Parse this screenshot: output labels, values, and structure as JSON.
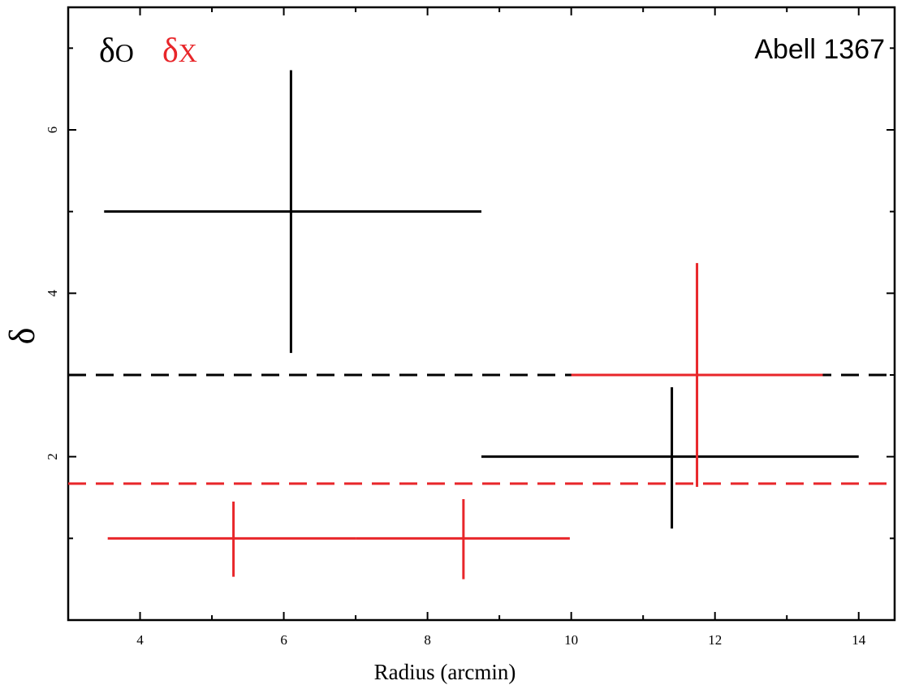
{
  "chart_data": {
    "type": "scatter",
    "xlabel": "Radius (arcmin)",
    "ylabel": "δ",
    "annotation": "Abell 1367",
    "xlim": [
      3,
      14.5
    ],
    "ylim": [
      0,
      7.5
    ],
    "x_ticks": [
      "4",
      "6",
      "8",
      "10",
      "12",
      "14"
    ],
    "y_ticks": [
      "2",
      "4",
      "6"
    ],
    "grid": false,
    "legend_position": "top-left",
    "series": [
      {
        "name": "δO",
        "legend_main": "δ",
        "legend_sub": "O",
        "color": "#000000",
        "points": [
          {
            "x": 6.1,
            "xerr_low": 2.6,
            "xerr_high": 2.65,
            "y": 5.0,
            "yerr_low": 1.73,
            "yerr_high": 1.73
          },
          {
            "x": 11.4,
            "xerr_low": 2.65,
            "xerr_high": 2.6,
            "y": 2.0,
            "yerr_low": 0.88,
            "yerr_high": 0.85
          }
        ],
        "reference_line": 3.0
      },
      {
        "name": "δX",
        "legend_main": "δ",
        "legend_sub": "X",
        "color": "#e8262a",
        "points": [
          {
            "x": 5.3,
            "xerr_low": 1.75,
            "xerr_high": 1.7,
            "y": 1.0,
            "yerr_low": 0.47,
            "yerr_high": 0.45
          },
          {
            "x": 8.5,
            "xerr_low": 1.5,
            "xerr_high": 1.48,
            "y": 1.0,
            "yerr_low": 0.5,
            "yerr_high": 0.48
          },
          {
            "x": 11.75,
            "xerr_low": 1.75,
            "xerr_high": 1.75,
            "y": 3.0,
            "yerr_low": 1.37,
            "yerr_high": 1.37
          }
        ],
        "reference_line": 1.67
      }
    ]
  }
}
